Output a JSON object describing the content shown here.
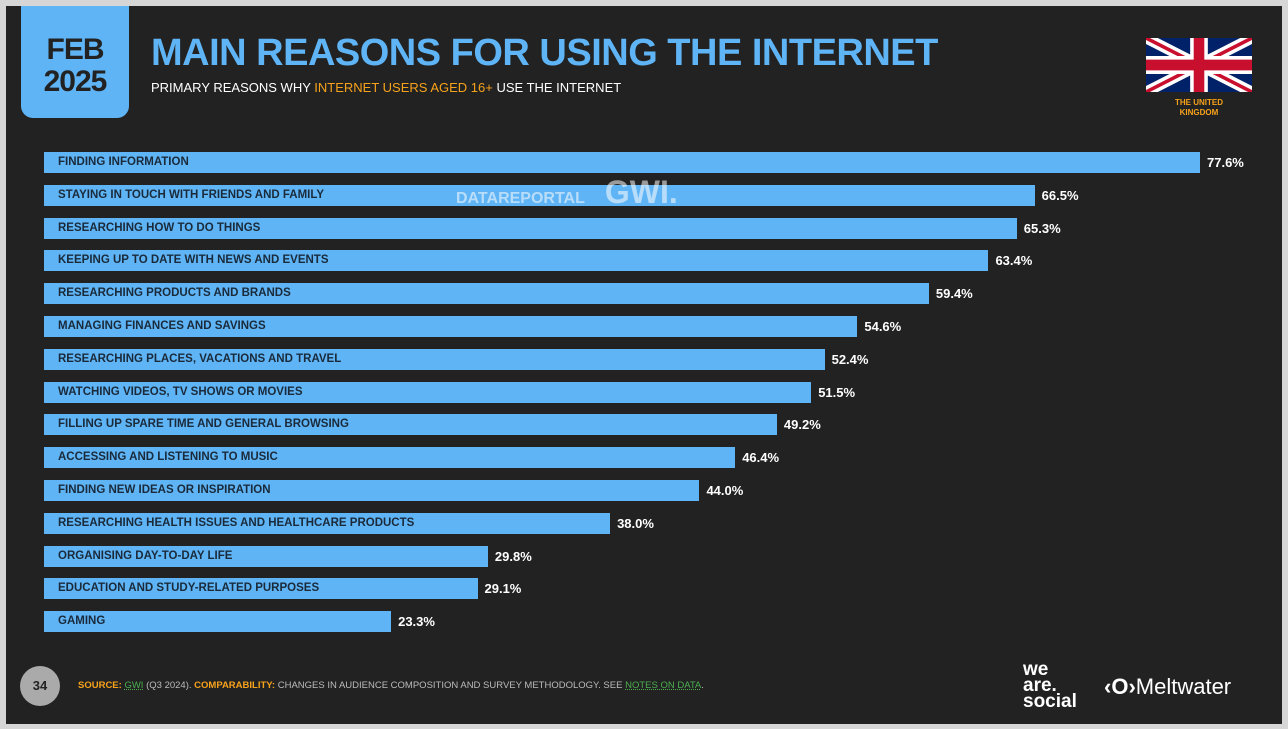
{
  "header": {
    "month": "FEB",
    "year": "2025",
    "title": "MAIN REASONS FOR USING THE INTERNET",
    "subtitle_pre": "PRIMARY REASONS WHY ",
    "subtitle_hl": "INTERNET USERS AGED 16+",
    "subtitle_post": " USE THE INTERNET",
    "country_line1": "THE UNITED",
    "country_line2": "KINGDOM"
  },
  "watermark": {
    "a": "DATAREPORTAL",
    "b": "GWI."
  },
  "footer": {
    "page": "34",
    "source_label": "SOURCE:",
    "source": "GWI",
    "source_rest": " (Q3 2024). ",
    "comp_label": "COMPARABILITY:",
    "comp_text": " CHANGES IN AUDIENCE COMPOSITION AND SURVEY METHODOLOGY. SEE ",
    "notes": "NOTES ON DATA",
    "end": "."
  },
  "brands": {
    "was1": "we",
    "was2": "are.",
    "was3": "social",
    "meltwater": "Meltwater"
  },
  "colors": {
    "bar": "#5fb4f5",
    "accent": "#f7a21b"
  },
  "chart_data": {
    "type": "bar",
    "orientation": "horizontal",
    "title": "MAIN REASONS FOR USING THE INTERNET",
    "xlabel": "",
    "ylabel": "",
    "xlim": [
      0,
      77.6
    ],
    "categories": [
      "FINDING INFORMATION",
      "STAYING IN TOUCH WITH FRIENDS AND FAMILY",
      "RESEARCHING HOW TO DO THINGS",
      "KEEPING UP TO DATE WITH NEWS AND EVENTS",
      "RESEARCHING PRODUCTS AND BRANDS",
      "MANAGING FINANCES AND SAVINGS",
      "RESEARCHING PLACES, VACATIONS AND TRAVEL",
      "WATCHING VIDEOS, TV SHOWS OR MOVIES",
      "FILLING UP SPARE TIME AND GENERAL BROWSING",
      "ACCESSING AND LISTENING TO MUSIC",
      "FINDING NEW IDEAS OR INSPIRATION",
      "RESEARCHING HEALTH ISSUES AND HEALTHCARE PRODUCTS",
      "ORGANISING DAY-TO-DAY LIFE",
      "EDUCATION AND STUDY-RELATED PURPOSES",
      "GAMING"
    ],
    "values": [
      77.6,
      66.5,
      65.3,
      63.4,
      59.4,
      54.6,
      52.4,
      51.5,
      49.2,
      46.4,
      44.0,
      38.0,
      29.8,
      29.1,
      23.3
    ],
    "labels": [
      "77.6%",
      "66.5%",
      "65.3%",
      "63.4%",
      "59.4%",
      "54.6%",
      "52.4%",
      "51.5%",
      "49.2%",
      "46.4%",
      "44.0%",
      "38.0%",
      "29.8%",
      "29.1%",
      "23.3%"
    ]
  }
}
